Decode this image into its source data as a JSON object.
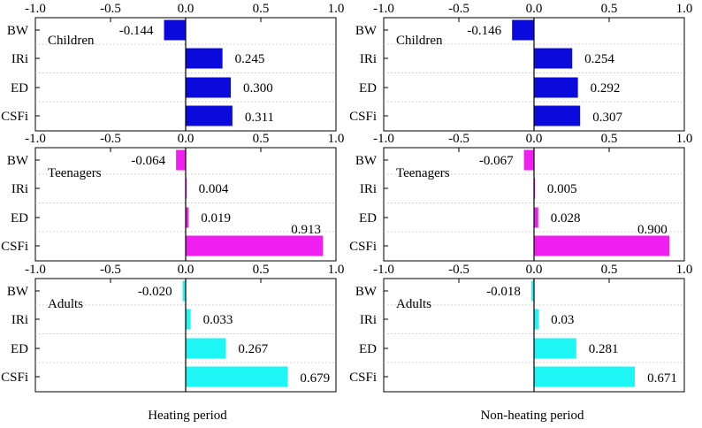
{
  "chart_data": {
    "type": "bar",
    "orientation": "horizontal",
    "xlim": [
      -1.0,
      1.0
    ],
    "x_ticks": [
      "-1.0",
      "-0.5",
      "0.0",
      "0.5",
      "1.0"
    ],
    "categories": [
      "BW",
      "IRi",
      "ED",
      "CSFi"
    ],
    "columns": [
      "Heating period",
      "Non-heating period"
    ],
    "colors": {
      "Children": "#0a0adc",
      "Teenagers": "#f01ef0",
      "Adults": "#1ef5f5"
    },
    "panels": [
      {
        "group": "Children",
        "column": "Heating period",
        "values": [
          -0.144,
          0.245,
          0.3,
          0.311
        ],
        "labels": [
          "-0.144",
          "0.245",
          "0.300",
          "0.311"
        ]
      },
      {
        "group": "Children",
        "column": "Non-heating period",
        "values": [
          -0.146,
          0.254,
          0.292,
          0.307
        ],
        "labels": [
          "-0.146",
          "0.254",
          "0.292",
          "0.307"
        ]
      },
      {
        "group": "Teenagers",
        "column": "Heating period",
        "values": [
          -0.064,
          0.004,
          0.019,
          0.913
        ],
        "labels": [
          "-0.064",
          "0.004",
          "0.019",
          "0.913"
        ]
      },
      {
        "group": "Teenagers",
        "column": "Non-heating period",
        "values": [
          -0.067,
          0.005,
          0.028,
          0.9
        ],
        "labels": [
          "-0.067",
          "0.005",
          "0.028",
          "0.900"
        ]
      },
      {
        "group": "Adults",
        "column": "Heating period",
        "values": [
          -0.02,
          0.033,
          0.267,
          0.679
        ],
        "labels": [
          "-0.020",
          "0.033",
          "0.267",
          "0.679"
        ]
      },
      {
        "group": "Adults",
        "column": "Non-heating period",
        "values": [
          -0.018,
          0.03,
          0.281,
          0.671
        ],
        "labels": [
          "-0.018",
          "0.03",
          "0.281",
          "0.671"
        ]
      }
    ]
  }
}
